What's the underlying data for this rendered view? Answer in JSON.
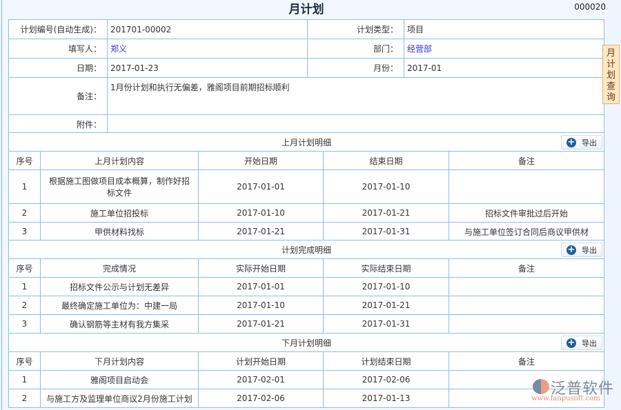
{
  "title": "月计划",
  "doc_no": "000020",
  "side_tab": "月计划查询",
  "form": {
    "plan_no_label": "计划编号(自动生成)：",
    "plan_no": "201701-00002",
    "plan_type_label": "计划类型：",
    "plan_type": "项目",
    "filler_label": "填写人：",
    "filler": "郑义",
    "dept_label": "部门：",
    "dept": "经营部",
    "date_label": "日期：",
    "date": "2017-01-23",
    "month_label": "月份：",
    "month": "2017-01",
    "remark_label": "备注：",
    "remark": "1月份计划和执行无偏差，雅阁项目前期招标顺利",
    "attach_label": "附件：",
    "attach": ""
  },
  "export_label": "导出",
  "sections": [
    {
      "title": "上月计划明细",
      "headers": [
        "序号",
        "上月计划内容",
        "开始日期",
        "结束日期",
        "备注"
      ],
      "rows": [
        [
          "1",
          "根据施工图做项目成本概算，制作好招标文件",
          "2017-01-01",
          "2017-01-10",
          ""
        ],
        [
          "2",
          "施工单位招投标",
          "2017-01-10",
          "2017-01-21",
          "招标文件审批过后开始"
        ],
        [
          "3",
          "甲供材料找标",
          "2017-01-21",
          "2017-01-31",
          "与施工单位签订合同后商议甲供材"
        ]
      ]
    },
    {
      "title": "计划完成明细",
      "headers": [
        "序号",
        "完成情况",
        "实际开始日期",
        "实际结束日期",
        "备注"
      ],
      "rows": [
        [
          "1",
          "招标文件公示与计划无差异",
          "2017-01-01",
          "2017-01-10",
          ""
        ],
        [
          "2",
          "最终确定施工单位为：中建一局",
          "2017-01-10",
          "2017-01-21",
          ""
        ],
        [
          "3",
          "确认钢筋等主材有我方集采",
          "2017-01-21",
          "2017-01-31",
          ""
        ]
      ]
    },
    {
      "title": "下月计划明细",
      "headers": [
        "序号",
        "下月计划内容",
        "计划开始日期",
        "计划结束日期",
        "备注"
      ],
      "rows": [
        [
          "1",
          "雅阁项目启动会",
          "2017-02-01",
          "2017-02-06",
          ""
        ],
        [
          "2",
          "与施工方及监理单位商议2月份施工计划",
          "2017-02-06",
          "2017-01-13",
          ""
        ]
      ]
    }
  ],
  "watermark": {
    "cn": "泛普软件",
    "en": "www.fanpusoft.com"
  }
}
